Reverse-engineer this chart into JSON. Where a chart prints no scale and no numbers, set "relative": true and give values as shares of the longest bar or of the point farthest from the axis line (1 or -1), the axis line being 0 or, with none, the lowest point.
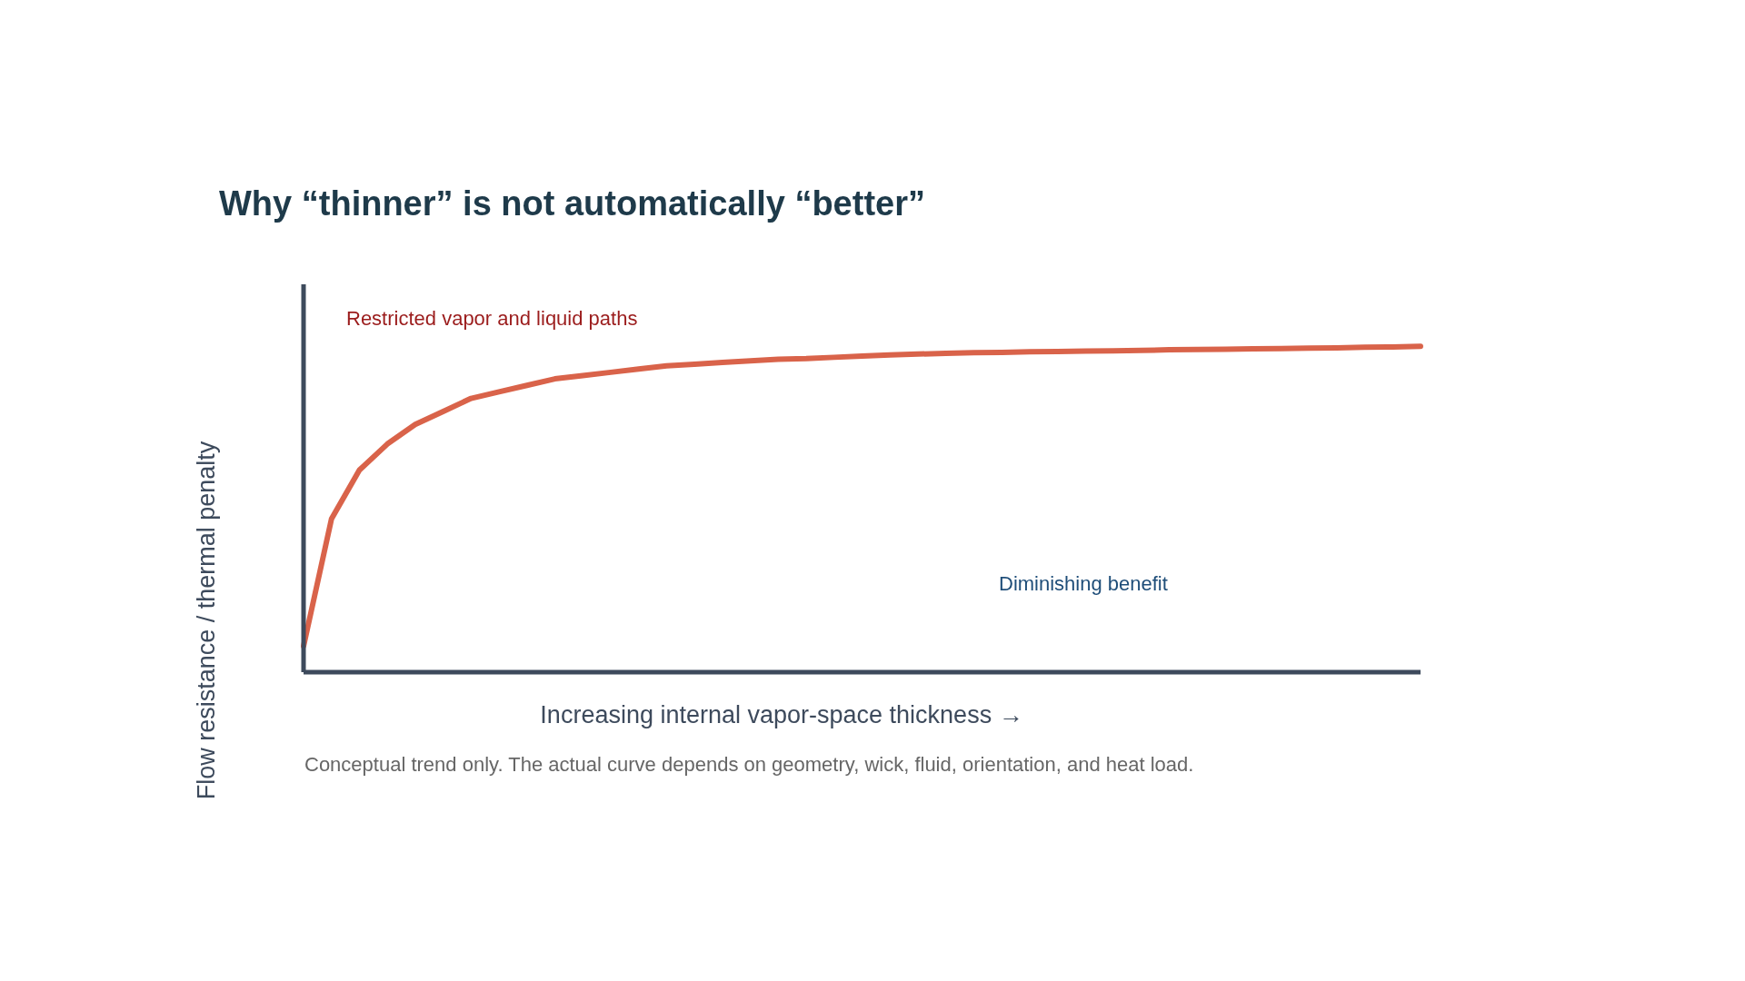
{
  "chart_data": {
    "type": "line",
    "title": "Why “thinner” is not automatically “better”",
    "xlabel": "Increasing internal vapor-space thickness →",
    "ylabel": "Flow resistance / thermal penalty",
    "relative": true,
    "color": "#d9634a",
    "categories": [
      null,
      null,
      null,
      null,
      null,
      null,
      null,
      null,
      null,
      null,
      null,
      null,
      null,
      null,
      null,
      null,
      null,
      null,
      null,
      null,
      null,
      null,
      null,
      null,
      null,
      null,
      null,
      null,
      null,
      null,
      null,
      null,
      null,
      null,
      null,
      null,
      null,
      null,
      null,
      null,
      null
    ],
    "values": [
      0.08,
      0.47,
      0.62,
      0.7,
      0.76,
      0.8,
      0.84,
      0.86,
      0.88,
      0.9,
      0.91,
      0.92,
      0.93,
      0.94,
      0.945,
      0.95,
      0.955,
      0.96,
      0.962,
      0.966,
      0.97,
      0.973,
      0.976,
      0.978,
      0.98,
      0.981,
      0.983,
      0.984,
      0.985,
      0.986,
      0.987,
      0.989,
      0.99,
      0.991,
      0.992,
      0.993,
      0.994,
      0.995,
      0.997,
      0.998,
      1
    ],
    "annotations": [
      "Restricted vapor and liquid paths",
      "Diminishing benefit",
      "Conceptual trend only. The actual curve depends on geometry, wick, fluid, orientation, and heat load."
    ]
  }
}
